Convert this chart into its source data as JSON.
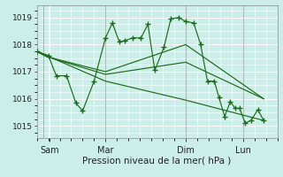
{
  "xlabel": "Pression niveau de la mer( hPa )",
  "bg_color": "#cceee8",
  "grid_color": "#ffffff",
  "line_color": "#1a6b1a",
  "ylim": [
    1014.55,
    1019.45
  ],
  "yticks": [
    1015,
    1016,
    1017,
    1018,
    1019
  ],
  "xlim": [
    0,
    10.5
  ],
  "x_tick_positions": [
    0.55,
    3.0,
    6.5,
    9.0
  ],
  "x_tick_labels": [
    "Sam",
    "Mar",
    "Dim",
    "Lun"
  ],
  "x_vlines": [
    0.3,
    3.0,
    6.5,
    9.0
  ],
  "series1": [
    [
      0.0,
      1017.75
    ],
    [
      0.5,
      1017.6
    ],
    [
      0.85,
      1016.85
    ],
    [
      1.3,
      1016.85
    ],
    [
      1.7,
      1015.85
    ],
    [
      2.0,
      1015.55
    ],
    [
      2.5,
      1016.65
    ],
    [
      3.0,
      1018.25
    ],
    [
      3.3,
      1018.8
    ],
    [
      3.6,
      1018.1
    ],
    [
      3.85,
      1018.15
    ],
    [
      4.2,
      1018.25
    ],
    [
      4.55,
      1018.25
    ],
    [
      4.85,
      1018.75
    ],
    [
      5.15,
      1017.05
    ],
    [
      5.55,
      1017.9
    ],
    [
      5.85,
      1018.95
    ],
    [
      6.2,
      1019.0
    ],
    [
      6.5,
      1018.85
    ],
    [
      6.85,
      1018.8
    ],
    [
      7.15,
      1018.0
    ],
    [
      7.45,
      1016.65
    ],
    [
      7.75,
      1016.65
    ],
    [
      7.95,
      1016.05
    ],
    [
      8.2,
      1015.35
    ],
    [
      8.45,
      1015.9
    ],
    [
      8.65,
      1015.65
    ],
    [
      8.85,
      1015.65
    ],
    [
      9.1,
      1015.1
    ],
    [
      9.35,
      1015.2
    ],
    [
      9.65,
      1015.6
    ],
    [
      9.9,
      1015.2
    ]
  ],
  "series2": [
    [
      0.0,
      1017.75
    ],
    [
      0.45,
      1017.55
    ],
    [
      3.0,
      1016.9
    ],
    [
      6.5,
      1017.35
    ],
    [
      9.9,
      1016.0
    ]
  ],
  "series3": [
    [
      0.0,
      1017.75
    ],
    [
      0.45,
      1017.55
    ],
    [
      3.0,
      1017.0
    ],
    [
      6.5,
      1018.0
    ],
    [
      9.9,
      1016.0
    ]
  ],
  "series4": [
    [
      0.0,
      1017.75
    ],
    [
      3.0,
      1016.65
    ],
    [
      6.5,
      1015.95
    ],
    [
      9.9,
      1015.2
    ]
  ]
}
